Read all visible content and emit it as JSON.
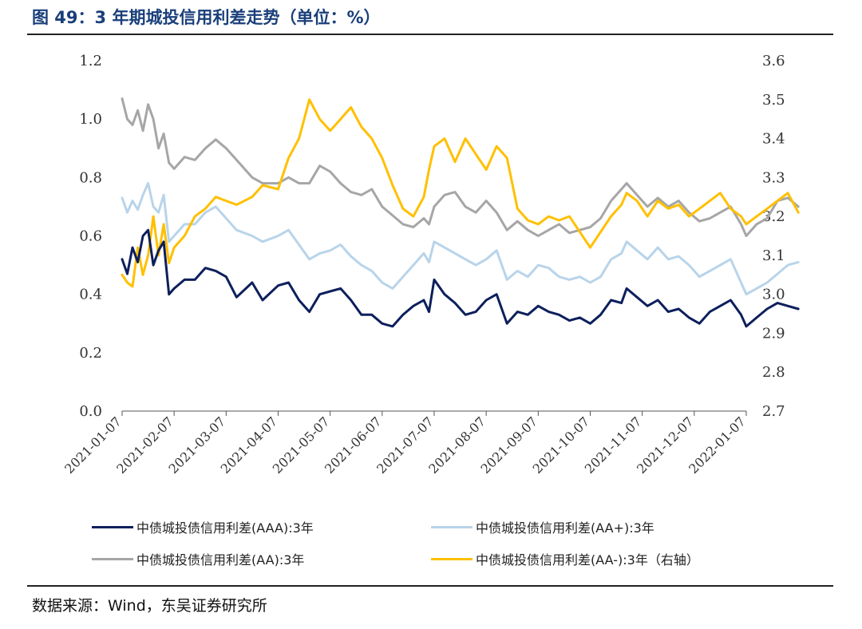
{
  "header": {
    "title": "图 49：3 年期城投信用利差走势（单位：%）"
  },
  "footer": {
    "source": "数据来源：Wind，东吴证券研究所"
  },
  "chart_data": {
    "type": "line",
    "x_ticks": [
      "2021-01-07",
      "2021-02-07",
      "2021-03-07",
      "2021-04-07",
      "2021-05-07",
      "2021-06-07",
      "2021-07-07",
      "2021-08-07",
      "2021-09-07",
      "2021-10-07",
      "2021-11-07",
      "2021-12-07",
      "2022-01-07"
    ],
    "y_left": {
      "ticks": [
        "0.0",
        "0.2",
        "0.4",
        "0.6",
        "0.8",
        "1.0",
        "1.2"
      ],
      "ylim": [
        0,
        1.2
      ]
    },
    "y_right": {
      "ticks": [
        "2.7",
        "2.8",
        "2.9",
        "3.0",
        "3.1",
        "3.2",
        "3.3",
        "3.4",
        "3.5",
        "3.6"
      ],
      "ylim": [
        2.7,
        3.6
      ]
    },
    "grid": false,
    "legend_position": "bottom",
    "series": [
      {
        "name": "中债城投债信用利差(AAA):3年",
        "axis": "left",
        "color": "#0d1f5c",
        "points": [
          [
            0,
            0.52
          ],
          [
            0.1,
            0.47
          ],
          [
            0.2,
            0.56
          ],
          [
            0.3,
            0.51
          ],
          [
            0.4,
            0.6
          ],
          [
            0.5,
            0.62
          ],
          [
            0.6,
            0.5
          ],
          [
            0.7,
            0.55
          ],
          [
            0.8,
            0.58
          ],
          [
            0.9,
            0.4
          ],
          [
            1.0,
            0.42
          ],
          [
            1.2,
            0.45
          ],
          [
            1.4,
            0.45
          ],
          [
            1.6,
            0.49
          ],
          [
            1.8,
            0.48
          ],
          [
            2.0,
            0.46
          ],
          [
            2.2,
            0.39
          ],
          [
            2.5,
            0.44
          ],
          [
            2.7,
            0.38
          ],
          [
            3.0,
            0.43
          ],
          [
            3.2,
            0.44
          ],
          [
            3.4,
            0.38
          ],
          [
            3.6,
            0.34
          ],
          [
            3.8,
            0.4
          ],
          [
            4.0,
            0.41
          ],
          [
            4.2,
            0.42
          ],
          [
            4.4,
            0.38
          ],
          [
            4.6,
            0.33
          ],
          [
            4.8,
            0.33
          ],
          [
            5.0,
            0.3
          ],
          [
            5.2,
            0.29
          ],
          [
            5.4,
            0.33
          ],
          [
            5.6,
            0.36
          ],
          [
            5.8,
            0.38
          ],
          [
            5.9,
            0.34
          ],
          [
            6.0,
            0.45
          ],
          [
            6.2,
            0.4
          ],
          [
            6.4,
            0.37
          ],
          [
            6.6,
            0.33
          ],
          [
            6.8,
            0.34
          ],
          [
            7.0,
            0.38
          ],
          [
            7.2,
            0.4
          ],
          [
            7.4,
            0.3
          ],
          [
            7.6,
            0.34
          ],
          [
            7.8,
            0.33
          ],
          [
            8.0,
            0.36
          ],
          [
            8.2,
            0.34
          ],
          [
            8.4,
            0.33
          ],
          [
            8.6,
            0.31
          ],
          [
            8.8,
            0.32
          ],
          [
            9.0,
            0.3
          ],
          [
            9.2,
            0.33
          ],
          [
            9.4,
            0.38
          ],
          [
            9.6,
            0.37
          ],
          [
            9.7,
            0.42
          ],
          [
            9.9,
            0.39
          ],
          [
            10.1,
            0.36
          ],
          [
            10.3,
            0.38
          ],
          [
            10.5,
            0.34
          ],
          [
            10.7,
            0.35
          ],
          [
            10.9,
            0.32
          ],
          [
            11.1,
            0.3
          ],
          [
            11.3,
            0.34
          ],
          [
            11.5,
            0.36
          ],
          [
            11.7,
            0.38
          ],
          [
            11.9,
            0.33
          ],
          [
            12.0,
            0.29
          ],
          [
            12.2,
            0.32
          ],
          [
            12.4,
            0.35
          ],
          [
            12.6,
            0.37
          ],
          [
            12.8,
            0.36
          ],
          [
            13.0,
            0.35
          ]
        ]
      },
      {
        "name": "中债城投债信用利差(AA+):3年",
        "axis": "left",
        "color": "#b8d4ea",
        "points": [
          [
            0,
            0.73
          ],
          [
            0.1,
            0.68
          ],
          [
            0.2,
            0.72
          ],
          [
            0.3,
            0.69
          ],
          [
            0.4,
            0.74
          ],
          [
            0.5,
            0.78
          ],
          [
            0.6,
            0.7
          ],
          [
            0.7,
            0.68
          ],
          [
            0.8,
            0.74
          ],
          [
            0.9,
            0.58
          ],
          [
            1.0,
            0.6
          ],
          [
            1.2,
            0.64
          ],
          [
            1.4,
            0.64
          ],
          [
            1.6,
            0.68
          ],
          [
            1.8,
            0.7
          ],
          [
            2.0,
            0.66
          ],
          [
            2.2,
            0.62
          ],
          [
            2.5,
            0.6
          ],
          [
            2.7,
            0.58
          ],
          [
            3.0,
            0.6
          ],
          [
            3.2,
            0.62
          ],
          [
            3.4,
            0.57
          ],
          [
            3.6,
            0.52
          ],
          [
            3.8,
            0.54
          ],
          [
            4.0,
            0.55
          ],
          [
            4.2,
            0.57
          ],
          [
            4.4,
            0.53
          ],
          [
            4.6,
            0.5
          ],
          [
            4.8,
            0.48
          ],
          [
            5.0,
            0.44
          ],
          [
            5.2,
            0.42
          ],
          [
            5.4,
            0.46
          ],
          [
            5.6,
            0.5
          ],
          [
            5.8,
            0.54
          ],
          [
            5.9,
            0.51
          ],
          [
            6.0,
            0.58
          ],
          [
            6.2,
            0.56
          ],
          [
            6.4,
            0.54
          ],
          [
            6.6,
            0.52
          ],
          [
            6.8,
            0.5
          ],
          [
            7.0,
            0.52
          ],
          [
            7.2,
            0.55
          ],
          [
            7.4,
            0.45
          ],
          [
            7.6,
            0.48
          ],
          [
            7.8,
            0.46
          ],
          [
            8.0,
            0.5
          ],
          [
            8.2,
            0.49
          ],
          [
            8.4,
            0.46
          ],
          [
            8.6,
            0.45
          ],
          [
            8.8,
            0.46
          ],
          [
            9.0,
            0.44
          ],
          [
            9.2,
            0.46
          ],
          [
            9.4,
            0.52
          ],
          [
            9.6,
            0.54
          ],
          [
            9.7,
            0.58
          ],
          [
            9.9,
            0.55
          ],
          [
            10.1,
            0.52
          ],
          [
            10.3,
            0.56
          ],
          [
            10.5,
            0.52
          ],
          [
            10.7,
            0.53
          ],
          [
            10.9,
            0.5
          ],
          [
            11.1,
            0.46
          ],
          [
            11.3,
            0.48
          ],
          [
            11.5,
            0.5
          ],
          [
            11.7,
            0.52
          ],
          [
            11.9,
            0.44
          ],
          [
            12.0,
            0.4
          ],
          [
            12.2,
            0.42
          ],
          [
            12.4,
            0.44
          ],
          [
            12.6,
            0.47
          ],
          [
            12.8,
            0.5
          ],
          [
            13.0,
            0.51
          ]
        ]
      },
      {
        "name": "中债城投债信用利差(AA):3年",
        "axis": "left",
        "color": "#a6a6a6",
        "points": [
          [
            0,
            1.07
          ],
          [
            0.1,
            1.0
          ],
          [
            0.2,
            0.98
          ],
          [
            0.3,
            1.03
          ],
          [
            0.4,
            0.96
          ],
          [
            0.5,
            1.05
          ],
          [
            0.6,
            1.0
          ],
          [
            0.7,
            0.9
          ],
          [
            0.8,
            0.95
          ],
          [
            0.9,
            0.85
          ],
          [
            1.0,
            0.83
          ],
          [
            1.2,
            0.87
          ],
          [
            1.4,
            0.86
          ],
          [
            1.6,
            0.9
          ],
          [
            1.8,
            0.93
          ],
          [
            2.0,
            0.9
          ],
          [
            2.2,
            0.86
          ],
          [
            2.5,
            0.8
          ],
          [
            2.7,
            0.78
          ],
          [
            3.0,
            0.78
          ],
          [
            3.2,
            0.8
          ],
          [
            3.4,
            0.78
          ],
          [
            3.6,
            0.78
          ],
          [
            3.8,
            0.84
          ],
          [
            4.0,
            0.82
          ],
          [
            4.2,
            0.78
          ],
          [
            4.4,
            0.75
          ],
          [
            4.6,
            0.74
          ],
          [
            4.8,
            0.76
          ],
          [
            5.0,
            0.7
          ],
          [
            5.2,
            0.67
          ],
          [
            5.4,
            0.64
          ],
          [
            5.6,
            0.63
          ],
          [
            5.8,
            0.66
          ],
          [
            5.9,
            0.64
          ],
          [
            6.0,
            0.7
          ],
          [
            6.2,
            0.74
          ],
          [
            6.4,
            0.75
          ],
          [
            6.6,
            0.7
          ],
          [
            6.8,
            0.68
          ],
          [
            7.0,
            0.72
          ],
          [
            7.2,
            0.68
          ],
          [
            7.4,
            0.62
          ],
          [
            7.6,
            0.65
          ],
          [
            7.8,
            0.62
          ],
          [
            8.0,
            0.6
          ],
          [
            8.2,
            0.62
          ],
          [
            8.4,
            0.64
          ],
          [
            8.6,
            0.61
          ],
          [
            8.8,
            0.62
          ],
          [
            9.0,
            0.63
          ],
          [
            9.2,
            0.66
          ],
          [
            9.4,
            0.72
          ],
          [
            9.6,
            0.76
          ],
          [
            9.7,
            0.78
          ],
          [
            9.9,
            0.74
          ],
          [
            10.1,
            0.7
          ],
          [
            10.3,
            0.73
          ],
          [
            10.5,
            0.7
          ],
          [
            10.7,
            0.72
          ],
          [
            10.9,
            0.68
          ],
          [
            11.1,
            0.65
          ],
          [
            11.3,
            0.66
          ],
          [
            11.5,
            0.68
          ],
          [
            11.7,
            0.7
          ],
          [
            11.9,
            0.64
          ],
          [
            12.0,
            0.6
          ],
          [
            12.2,
            0.64
          ],
          [
            12.4,
            0.66
          ],
          [
            12.6,
            0.72
          ],
          [
            12.8,
            0.73
          ],
          [
            13.0,
            0.7
          ]
        ]
      },
      {
        "name": "中债城投债信用利差(AA-):3年（右轴）",
        "axis": "right",
        "color": "#ffc000",
        "points": [
          [
            0,
            3.05
          ],
          [
            0.1,
            3.03
          ],
          [
            0.2,
            3.02
          ],
          [
            0.3,
            3.12
          ],
          [
            0.4,
            3.05
          ],
          [
            0.5,
            3.1
          ],
          [
            0.6,
            3.2
          ],
          [
            0.7,
            3.1
          ],
          [
            0.8,
            3.18
          ],
          [
            0.9,
            3.08
          ],
          [
            1.0,
            3.12
          ],
          [
            1.2,
            3.15
          ],
          [
            1.4,
            3.2
          ],
          [
            1.6,
            3.22
          ],
          [
            1.8,
            3.25
          ],
          [
            2.0,
            3.24
          ],
          [
            2.2,
            3.23
          ],
          [
            2.5,
            3.25
          ],
          [
            2.7,
            3.28
          ],
          [
            3.0,
            3.27
          ],
          [
            3.2,
            3.35
          ],
          [
            3.4,
            3.4
          ],
          [
            3.6,
            3.5
          ],
          [
            3.8,
            3.45
          ],
          [
            4.0,
            3.42
          ],
          [
            4.2,
            3.45
          ],
          [
            4.4,
            3.48
          ],
          [
            4.6,
            3.43
          ],
          [
            4.8,
            3.4
          ],
          [
            5.0,
            3.35
          ],
          [
            5.2,
            3.28
          ],
          [
            5.4,
            3.22
          ],
          [
            5.6,
            3.2
          ],
          [
            5.8,
            3.25
          ],
          [
            5.9,
            3.32
          ],
          [
            6.0,
            3.38
          ],
          [
            6.2,
            3.4
          ],
          [
            6.4,
            3.34
          ],
          [
            6.6,
            3.4
          ],
          [
            6.8,
            3.36
          ],
          [
            7.0,
            3.32
          ],
          [
            7.2,
            3.38
          ],
          [
            7.4,
            3.35
          ],
          [
            7.6,
            3.22
          ],
          [
            7.8,
            3.19
          ],
          [
            8.0,
            3.18
          ],
          [
            8.2,
            3.2
          ],
          [
            8.4,
            3.19
          ],
          [
            8.6,
            3.2
          ],
          [
            8.8,
            3.16
          ],
          [
            9.0,
            3.12
          ],
          [
            9.2,
            3.16
          ],
          [
            9.4,
            3.2
          ],
          [
            9.6,
            3.23
          ],
          [
            9.7,
            3.26
          ],
          [
            9.9,
            3.24
          ],
          [
            10.1,
            3.2
          ],
          [
            10.3,
            3.24
          ],
          [
            10.5,
            3.22
          ],
          [
            10.7,
            3.23
          ],
          [
            10.9,
            3.2
          ],
          [
            11.1,
            3.22
          ],
          [
            11.3,
            3.24
          ],
          [
            11.5,
            3.26
          ],
          [
            11.7,
            3.22
          ],
          [
            11.9,
            3.2
          ],
          [
            12.0,
            3.18
          ],
          [
            12.2,
            3.2
          ],
          [
            12.4,
            3.22
          ],
          [
            12.6,
            3.24
          ],
          [
            12.8,
            3.26
          ],
          [
            13.0,
            3.21
          ]
        ]
      }
    ]
  }
}
